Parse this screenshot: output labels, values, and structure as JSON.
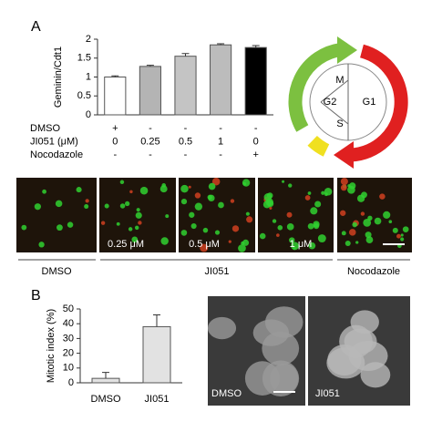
{
  "panels": {
    "a": "A",
    "b": "B"
  },
  "chart_data": [
    {
      "type": "bar",
      "y_label": "Geminin/Cdt1",
      "categories": [
        null,
        null,
        null,
        null,
        null
      ],
      "values": [
        1.0,
        1.28,
        1.55,
        1.85,
        1.78
      ],
      "errors": [
        0.03,
        0.03,
        0.07,
        0.03,
        0.05
      ],
      "colors": [
        "#ffffff",
        "#b4b4b4",
        "#c4c4c4",
        "#bcbcbc",
        "#000000"
      ],
      "ylim": [
        0,
        2
      ],
      "yticks": [
        0,
        0.5,
        1,
        1.5,
        2
      ],
      "conditions": [
        {
          "label": "DMSO",
          "values": [
            "+",
            "-",
            "-",
            "-",
            "-"
          ]
        },
        {
          "label": "JI051 (μM)",
          "values": [
            "0",
            "0.25",
            "0.5",
            "1",
            "0"
          ]
        },
        {
          "label": "Nocodazole",
          "values": [
            "-",
            "-",
            "-",
            "-",
            "+"
          ]
        }
      ]
    },
    {
      "type": "bar",
      "y_label": "Mitotic index (%)",
      "categories": [
        "DMSO",
        "JI051"
      ],
      "values": [
        3,
        38
      ],
      "errors": [
        4,
        8
      ],
      "colors": [
        "#e2e2e2",
        "#e2e2e2"
      ],
      "ylim": [
        0,
        50
      ],
      "yticks": [
        0,
        10,
        20,
        30,
        40,
        50
      ]
    }
  ],
  "cell_cycle": {
    "phases": [
      "M",
      "G2",
      "S",
      "G1"
    ]
  },
  "micrographs": {
    "doses": [
      "0.25 μM",
      "0.5 μM",
      "1 μM"
    ],
    "groups": [
      "DMSO",
      "JI051",
      "Nocodazole"
    ]
  },
  "nuclei_images": {
    "labels": [
      "DMSO",
      "JI051"
    ]
  }
}
